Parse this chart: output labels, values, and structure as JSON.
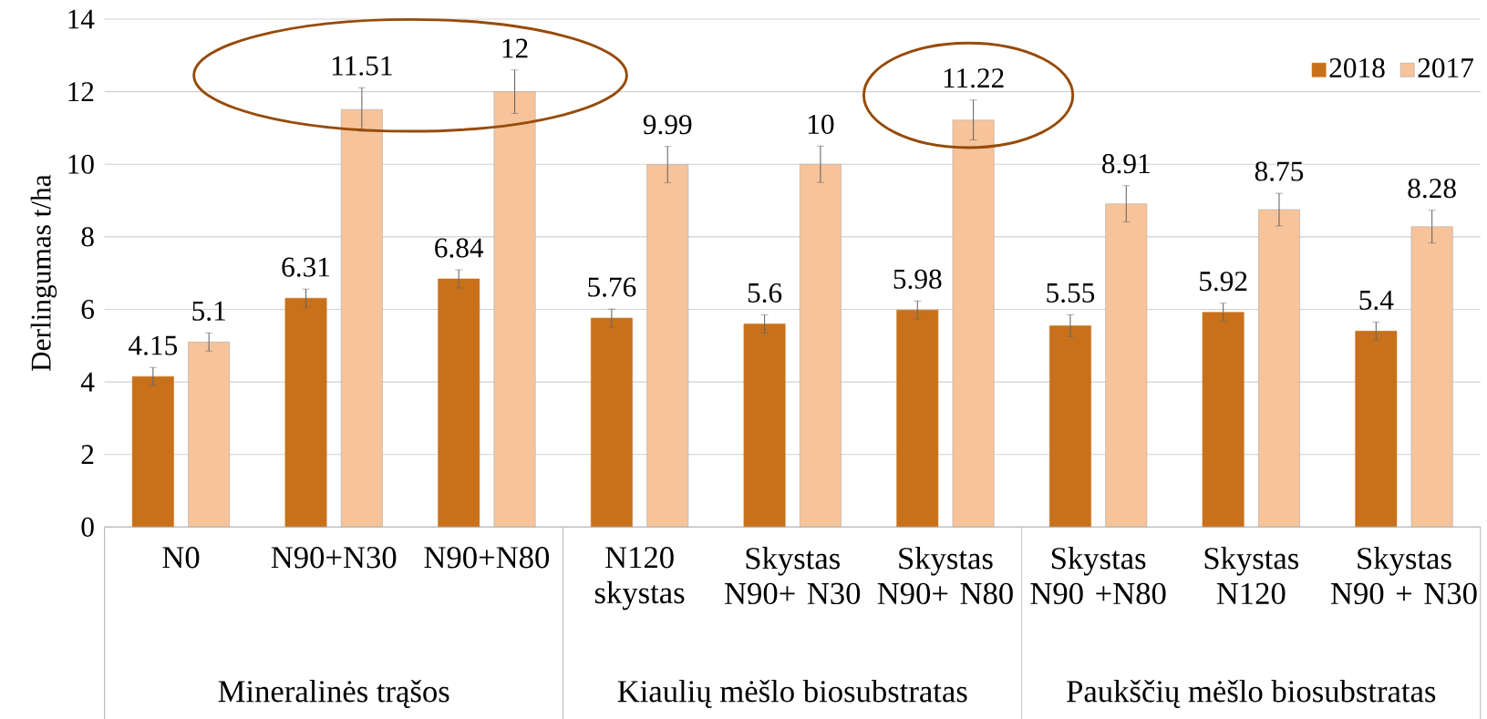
{
  "chart_data": {
    "type": "bar",
    "ylabel": "Derlingumas t/ha",
    "categories": [
      "N0",
      "N90+N30",
      "N90+N80",
      "N120 skystas",
      "Skystas N90+ N30",
      "Skystas N90+ N80",
      "Skystas N90 +N80",
      "Skystas N120",
      "Skystas N90 + N30"
    ],
    "series": [
      {
        "name": "2018",
        "color": "#c8711a",
        "values": [
          4.15,
          6.31,
          6.84,
          5.76,
          5.6,
          5.98,
          5.55,
          5.92,
          5.4
        ],
        "errors": [
          0.25,
          0.25,
          0.25,
          0.25,
          0.25,
          0.25,
          0.3,
          0.25,
          0.25
        ]
      },
      {
        "name": "2017",
        "color": "#f7c39a",
        "values": [
          5.1,
          11.51,
          12,
          9.99,
          10,
          11.22,
          8.91,
          8.75,
          8.28
        ],
        "errors": [
          0.25,
          0.6,
          0.6,
          0.5,
          0.5,
          0.55,
          0.5,
          0.45,
          0.45
        ]
      }
    ],
    "annotations": [
      "Mineralinės trąšos",
      "Kiaulių mėšlo biosubstratas",
      "Paukščių mėšlo biosubstratas"
    ],
    "ylim": [
      0,
      14
    ],
    "yticks": [
      0,
      2,
      4,
      6,
      8,
      10,
      12,
      14
    ],
    "grid": "y",
    "legend": "top right",
    "data_labels": true
  }
}
